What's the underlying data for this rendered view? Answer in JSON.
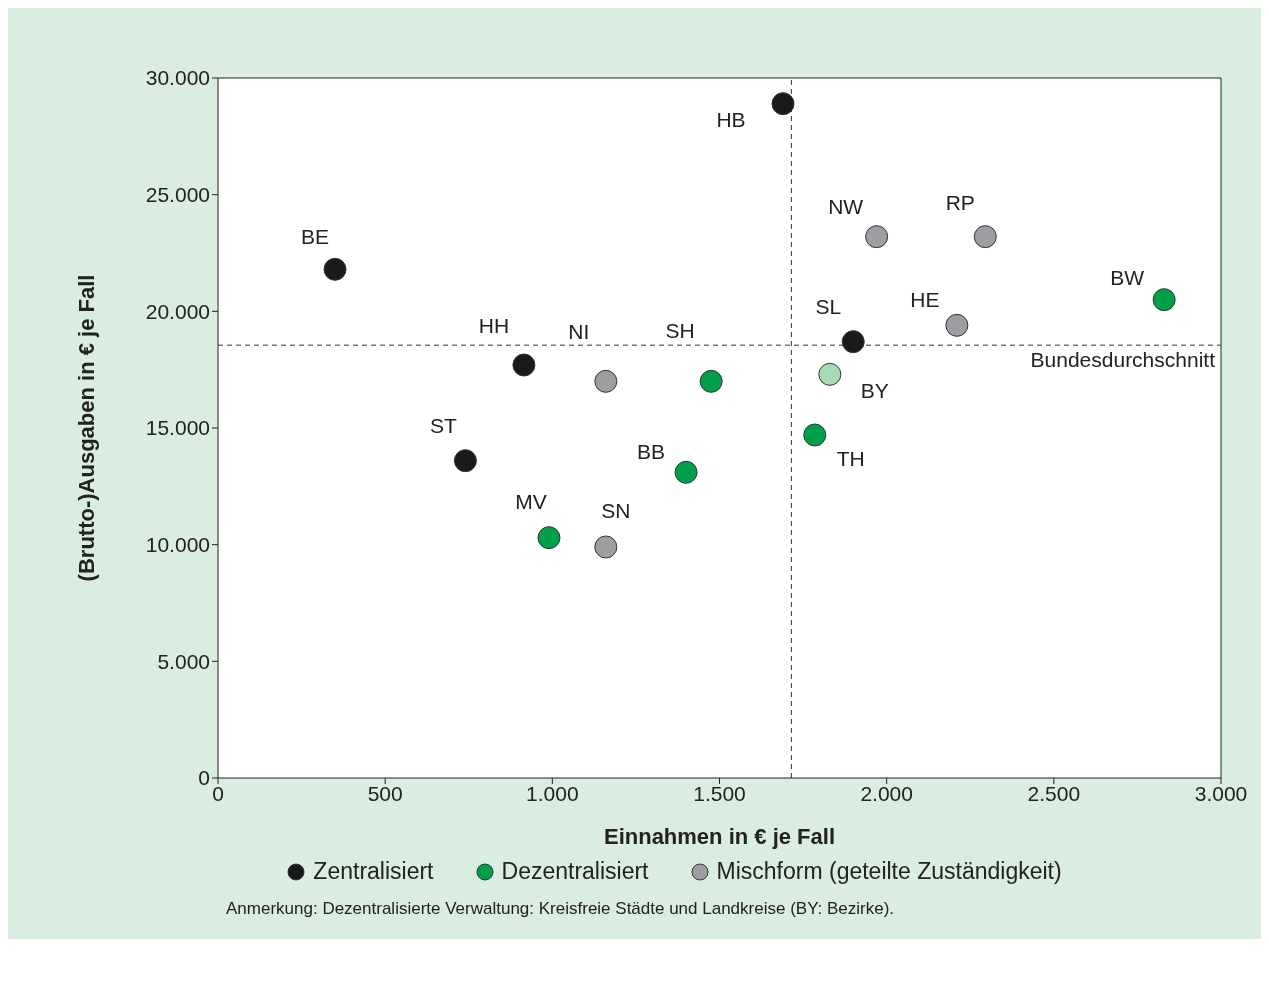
{
  "chart_data": {
    "type": "scatter",
    "xlabel": "Einnahmen in € je Fall",
    "ylabel": "(Brutto-)Ausgaben in € je Fall",
    "xlim": [
      0,
      3000
    ],
    "xticks": [
      {
        "value": 0,
        "label": "0"
      },
      {
        "value": 500,
        "label": "500"
      },
      {
        "value": 1000,
        "label": "1.000"
      },
      {
        "value": 1500,
        "label": "1.500"
      },
      {
        "value": 2000,
        "label": "2.000"
      },
      {
        "value": 2500,
        "label": "2.500"
      },
      {
        "value": 3000,
        "label": "3.000"
      }
    ],
    "ylim": [
      0,
      30000
    ],
    "yticks": [
      {
        "value": 0,
        "label": "0"
      },
      {
        "value": 5000,
        "label": "5.000"
      },
      {
        "value": 10000,
        "label": "10.000"
      },
      {
        "value": 15000,
        "label": "15.000"
      },
      {
        "value": 20000,
        "label": "20.000"
      },
      {
        "value": 25000,
        "label": "25.000"
      },
      {
        "value": 30000,
        "label": "30.000"
      }
    ],
    "grid": false,
    "legend": "bottom",
    "marker": "circle",
    "series": [
      {
        "name": "Zentralisiert",
        "color": "#1a1a1a",
        "x": [
          1690,
          350,
          915,
          740,
          1900
        ],
        "values": [
          28900,
          21800,
          17700,
          13600,
          18700
        ]
      },
      {
        "name": "Dezentralisiert",
        "color": "#00a04a",
        "colors": [
          "#00a04a",
          "#00a04a",
          "#00a04a",
          "#00a04a",
          "#00a04a",
          "#a8dbb5"
        ],
        "x": [
          1475,
          1400,
          990,
          1785,
          2830,
          1830
        ],
        "values": [
          17000,
          13100,
          10300,
          14700,
          20500,
          17300
        ]
      },
      {
        "name": "Mischform (geteilte Zuständigkeit)",
        "color": "#9d9ea2",
        "x": [
          1160,
          1160,
          1970,
          2295,
          2210
        ],
        "values": [
          17000,
          9900,
          23200,
          23200,
          19400
        ]
      }
    ],
    "ref_lines": [
      {
        "axis": "x",
        "value": 1715,
        "line_style": "dashed",
        "color": "#333333"
      },
      {
        "axis": "y",
        "value": 18550,
        "label": "Bundesdurchschnitt",
        "line_style": "dashed",
        "color": "#333333"
      }
    ],
    "annotations": [
      {
        "text": "HB",
        "x": 1690,
        "y": 28900
      },
      {
        "text": "BE",
        "x": 350,
        "y": 21800
      },
      {
        "text": "HH",
        "x": 915,
        "y": 17700
      },
      {
        "text": "NI",
        "x": 1160,
        "y": 17000
      },
      {
        "text": "SH",
        "x": 1475,
        "y": 17000
      },
      {
        "text": "ST",
        "x": 740,
        "y": 13600
      },
      {
        "text": "BB",
        "x": 1400,
        "y": 13100
      },
      {
        "text": "MV",
        "x": 990,
        "y": 10300
      },
      {
        "text": "SN",
        "x": 1160,
        "y": 9900
      },
      {
        "text": "SL",
        "x": 1900,
        "y": 18700
      },
      {
        "text": "BY",
        "x": 1830,
        "y": 17300
      },
      {
        "text": "TH",
        "x": 1785,
        "y": 14700
      },
      {
        "text": "NW",
        "x": 1970,
        "y": 23200
      },
      {
        "text": "RP",
        "x": 2295,
        "y": 23200
      },
      {
        "text": "HE",
        "x": 2210,
        "y": 19400
      },
      {
        "text": "BW",
        "x": 2830,
        "y": 20500
      },
      "Anmerkung: Dezentralisierte Verwaltung: Kreisfreie Städte und Landkreise (BY: Bezirke)."
    ]
  }
}
